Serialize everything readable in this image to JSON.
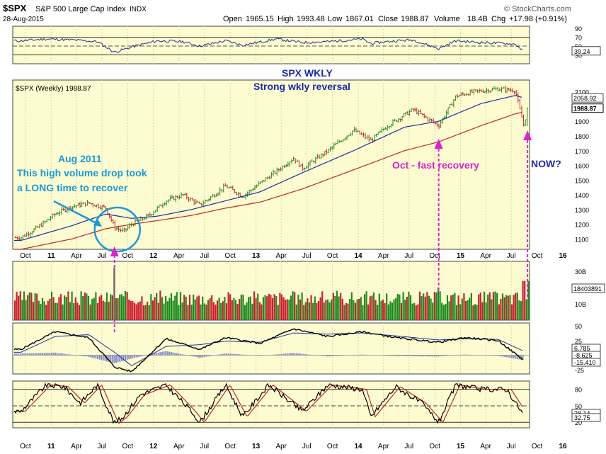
{
  "header": {
    "symbol": "$SPX",
    "name": "S&P 500 Large Cap Index",
    "exchange": "INDX",
    "date": "28-Aug-2015",
    "brand": "© StockCharts.com",
    "quote": [
      {
        "label": "Open",
        "value": "1965.15"
      },
      {
        "label": "High",
        "value": "1993.48"
      },
      {
        "label": "Low",
        "value": "1867.01"
      },
      {
        "label": "Close",
        "value": "1988.87"
      },
      {
        "label": "Volume",
        "value": "18.4B"
      },
      {
        "label": "Chg",
        "value": "+17.98 (+0.91%)"
      }
    ]
  },
  "main_legend": "$SPX (Weekly) 1988.87",
  "colors": {
    "panel_bg": "#fdfcd0",
    "up": "#1e8c1e",
    "down": "#cc2030",
    "ma_short": "#1c2fa0",
    "ma_long": "#c02828",
    "annotation_blue": "#1a9ad8",
    "annotation_magenta": "#e020d0",
    "title_navy": "#1a2ab0"
  },
  "annotations": {
    "title_1": "SPX WKLY",
    "title_2": "Strong wkly reversal",
    "aug_1": "Aug  2011",
    "aug_2": "This high volume drop took",
    "aug_3": "a LONG time to recover",
    "oct": "Oct - fast recovery",
    "now": "NOW?"
  },
  "x_axis": [
    "Oct",
    "11",
    "Apr",
    "Jul",
    "Oct",
    "12",
    "Apr",
    "Jul",
    "Oct",
    "13",
    "Apr",
    "Jul",
    "Oct",
    "14",
    "Apr",
    "Jul",
    "Oct",
    "15",
    "Apr",
    "Jul",
    "Oct",
    "16"
  ],
  "chart_data": [
    {
      "type": "line",
      "panel": "rsi",
      "ylim": [
        10,
        95
      ],
      "y_ticks": [
        90,
        70,
        50,
        30
      ],
      "reference_lines": [
        70,
        30
      ],
      "last_value": "39.24",
      "series": [
        {
          "x": [
            "2010-09",
            "2010-12",
            "2011-03",
            "2011-06",
            "2011-08",
            "2011-10",
            "2012-01",
            "2012-04",
            "2012-06",
            "2012-09",
            "2012-11",
            "2013-03",
            "2013-06",
            "2013-09",
            "2014-01",
            "2014-02",
            "2014-05",
            "2014-07",
            "2014-10",
            "2014-12",
            "2015-03",
            "2015-06",
            "2015-07",
            "2015-08"
          ],
          "values": [
            62,
            66,
            64,
            60,
            36,
            48,
            62,
            60,
            50,
            62,
            52,
            66,
            58,
            60,
            66,
            56,
            62,
            64,
            44,
            62,
            58,
            56,
            54,
            39.24
          ]
        }
      ]
    },
    {
      "type": "line",
      "panel": "price",
      "ylim": [
        1030,
        2180
      ],
      "y_ticks": [
        1100,
        1200,
        1300,
        1400,
        1500,
        1600,
        1700,
        1800,
        1900,
        2000,
        2100
      ],
      "last_values": [
        "2058.92",
        "1988.87"
      ],
      "series": [
        {
          "x": [
            "2010-09",
            "2010-11",
            "2011-01",
            "2011-03",
            "2011-05",
            "2011-07",
            "2011-08",
            "2011-09",
            "2011-10",
            "2011-12",
            "2012-02",
            "2012-04",
            "2012-06",
            "2012-09",
            "2012-11",
            "2013-01",
            "2013-03",
            "2013-05",
            "2013-06",
            "2013-09",
            "2013-12",
            "2014-02",
            "2014-04",
            "2014-07",
            "2014-10",
            "2014-12",
            "2015-02",
            "2015-05",
            "2015-07",
            "2015-08",
            "2015-08-28"
          ],
          "values": [
            1110,
            1180,
            1270,
            1320,
            1345,
            1310,
            1180,
            1150,
            1200,
            1260,
            1360,
            1400,
            1330,
            1460,
            1390,
            1480,
            1560,
            1650,
            1580,
            1700,
            1840,
            1770,
            1870,
            1980,
            1870,
            2070,
            2100,
            2120,
            2110,
            1870,
            1988.87
          ]
        },
        {
          "name": "",
          "x": [
            "2010-09",
            "2011-03",
            "2011-07",
            "2011-10",
            "2012-01",
            "2012-05",
            "2012-09",
            "2013-01",
            "2013-06",
            "2013-12",
            "2014-06",
            "2014-10",
            "2015-03",
            "2015-07",
            "2015-08"
          ],
          "values": [
            1090,
            1190,
            1270,
            1240,
            1255,
            1300,
            1360,
            1420,
            1550,
            1700,
            1860,
            1900,
            2020,
            2075,
            2058.92
          ]
        },
        {
          "name": "",
          "x": [
            "2010-09",
            "2011-03",
            "2011-07",
            "2011-10",
            "2012-01",
            "2012-05",
            "2012-09",
            "2013-01",
            "2013-06",
            "2013-12",
            "2014-06",
            "2014-10",
            "2015-03",
            "2015-07",
            "2015-08"
          ],
          "values": [
            1030,
            1100,
            1170,
            1200,
            1225,
            1260,
            1310,
            1350,
            1440,
            1570,
            1700,
            1760,
            1870,
            1950,
            1965
          ]
        }
      ]
    },
    {
      "type": "bar",
      "panel": "volume",
      "ylim": [
        0,
        36
      ],
      "y_ticks": [
        10,
        30
      ],
      "y_tick_labels": [
        "10B",
        "30B"
      ],
      "last_value": "18403891",
      "spikes": [
        {
          "x": "2011-08",
          "value": 32
        },
        {
          "x": "2014-10",
          "value": 20
        },
        {
          "x": "2015-08",
          "value": 24
        }
      ]
    },
    {
      "type": "line",
      "panel": "macd",
      "ylim": [
        -32,
        55
      ],
      "y_ticks": [
        50,
        25,
        -25
      ],
      "last_values": [
        "6.785",
        "-8.625",
        "-15.410"
      ],
      "series": [
        {
          "x": [
            "2010-09",
            "2011-01",
            "2011-05",
            "2011-08",
            "2011-10",
            "2012-02",
            "2012-06",
            "2012-09",
            "2013-01",
            "2013-05",
            "2013-09",
            "2014-01",
            "2014-05",
            "2014-10",
            "2015-01",
            "2015-05",
            "2015-08"
          ],
          "values": [
            10,
            40,
            30,
            -20,
            -28,
            28,
            10,
            30,
            20,
            45,
            32,
            40,
            30,
            22,
            30,
            25,
            -8.625
          ]
        },
        {
          "x": [
            "2010-09",
            "2011-01",
            "2011-05",
            "2011-08",
            "2011-10",
            "2012-02",
            "2012-06",
            "2012-09",
            "2013-01",
            "2013-05",
            "2013-09",
            "2014-01",
            "2014-05",
            "2014-10",
            "2015-01",
            "2015-05",
            "2015-08"
          ],
          "values": [
            5,
            32,
            35,
            5,
            -18,
            15,
            18,
            24,
            22,
            38,
            36,
            38,
            33,
            26,
            28,
            27,
            6.785
          ]
        }
      ]
    },
    {
      "type": "line",
      "panel": "stochastic",
      "ylim": [
        10,
        95
      ],
      "y_ticks": [
        80,
        50,
        20
      ],
      "reference_lines": [
        80,
        50,
        20
      ],
      "last_values": [
        "38.14",
        "32.75"
      ],
      "series": [
        {
          "x": [
            "2010-09",
            "2010-12",
            "2011-02",
            "2011-04",
            "2011-06",
            "2011-08",
            "2011-09",
            "2011-11",
            "2012-02",
            "2012-05",
            "2012-06",
            "2012-09",
            "2012-11",
            "2013-02",
            "2013-06",
            "2013-09",
            "2014-01",
            "2014-02",
            "2014-05",
            "2014-08",
            "2014-10",
            "2014-12",
            "2015-03",
            "2015-06",
            "2015-08"
          ],
          "values": [
            40,
            88,
            85,
            55,
            88,
            18,
            30,
            70,
            88,
            40,
            20,
            88,
            30,
            88,
            40,
            88,
            80,
            30,
            85,
            55,
            20,
            88,
            80,
            80,
            32.75
          ]
        }
      ]
    }
  ]
}
